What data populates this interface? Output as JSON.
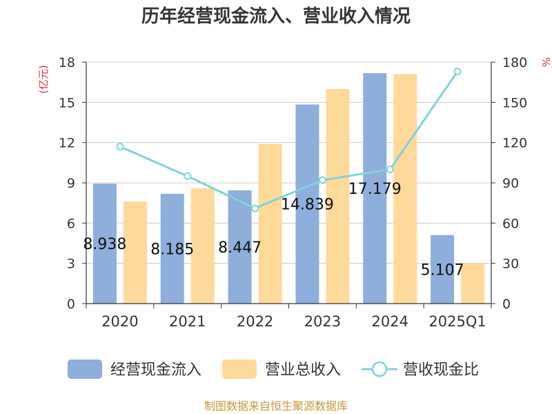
{
  "chart_data": {
    "type": "bar",
    "title": "历年经营现金流入、营业收入情况",
    "categories": [
      "2020",
      "2021",
      "2022",
      "2023",
      "2024",
      "2025Q1"
    ],
    "series": [
      {
        "name": "经营现金流入",
        "kind": "bar",
        "axis": "left",
        "color": "#8eaedb",
        "values": [
          8.938,
          8.185,
          8.447,
          14.839,
          17.179,
          5.107
        ],
        "labels": [
          "8.938",
          "8.185",
          "8.447",
          "14.839",
          "17.179",
          "5.107"
        ]
      },
      {
        "name": "营业总收入",
        "kind": "bar",
        "axis": "left",
        "color": "#fdd99a",
        "values": [
          7.6,
          8.6,
          11.9,
          16.0,
          17.1,
          3.0
        ]
      },
      {
        "name": "营收现金比",
        "kind": "line",
        "axis": "right",
        "color": "#7fd3d8",
        "values": [
          117,
          95,
          71,
          92,
          100,
          173
        ]
      }
    ],
    "y_left": {
      "unit": "(亿元)",
      "min": 0,
      "max": 18,
      "ticks": [
        "0",
        "3",
        "6",
        "9",
        "12",
        "15",
        "18"
      ]
    },
    "y_right": {
      "unit": "%",
      "min": 0,
      "max": 180,
      "ticks": [
        "0",
        "30",
        "60",
        "90",
        "120",
        "150",
        "180"
      ]
    },
    "grid": true,
    "legend_position": "bottom"
  },
  "source": "制图数据来自恒生聚源数据库"
}
